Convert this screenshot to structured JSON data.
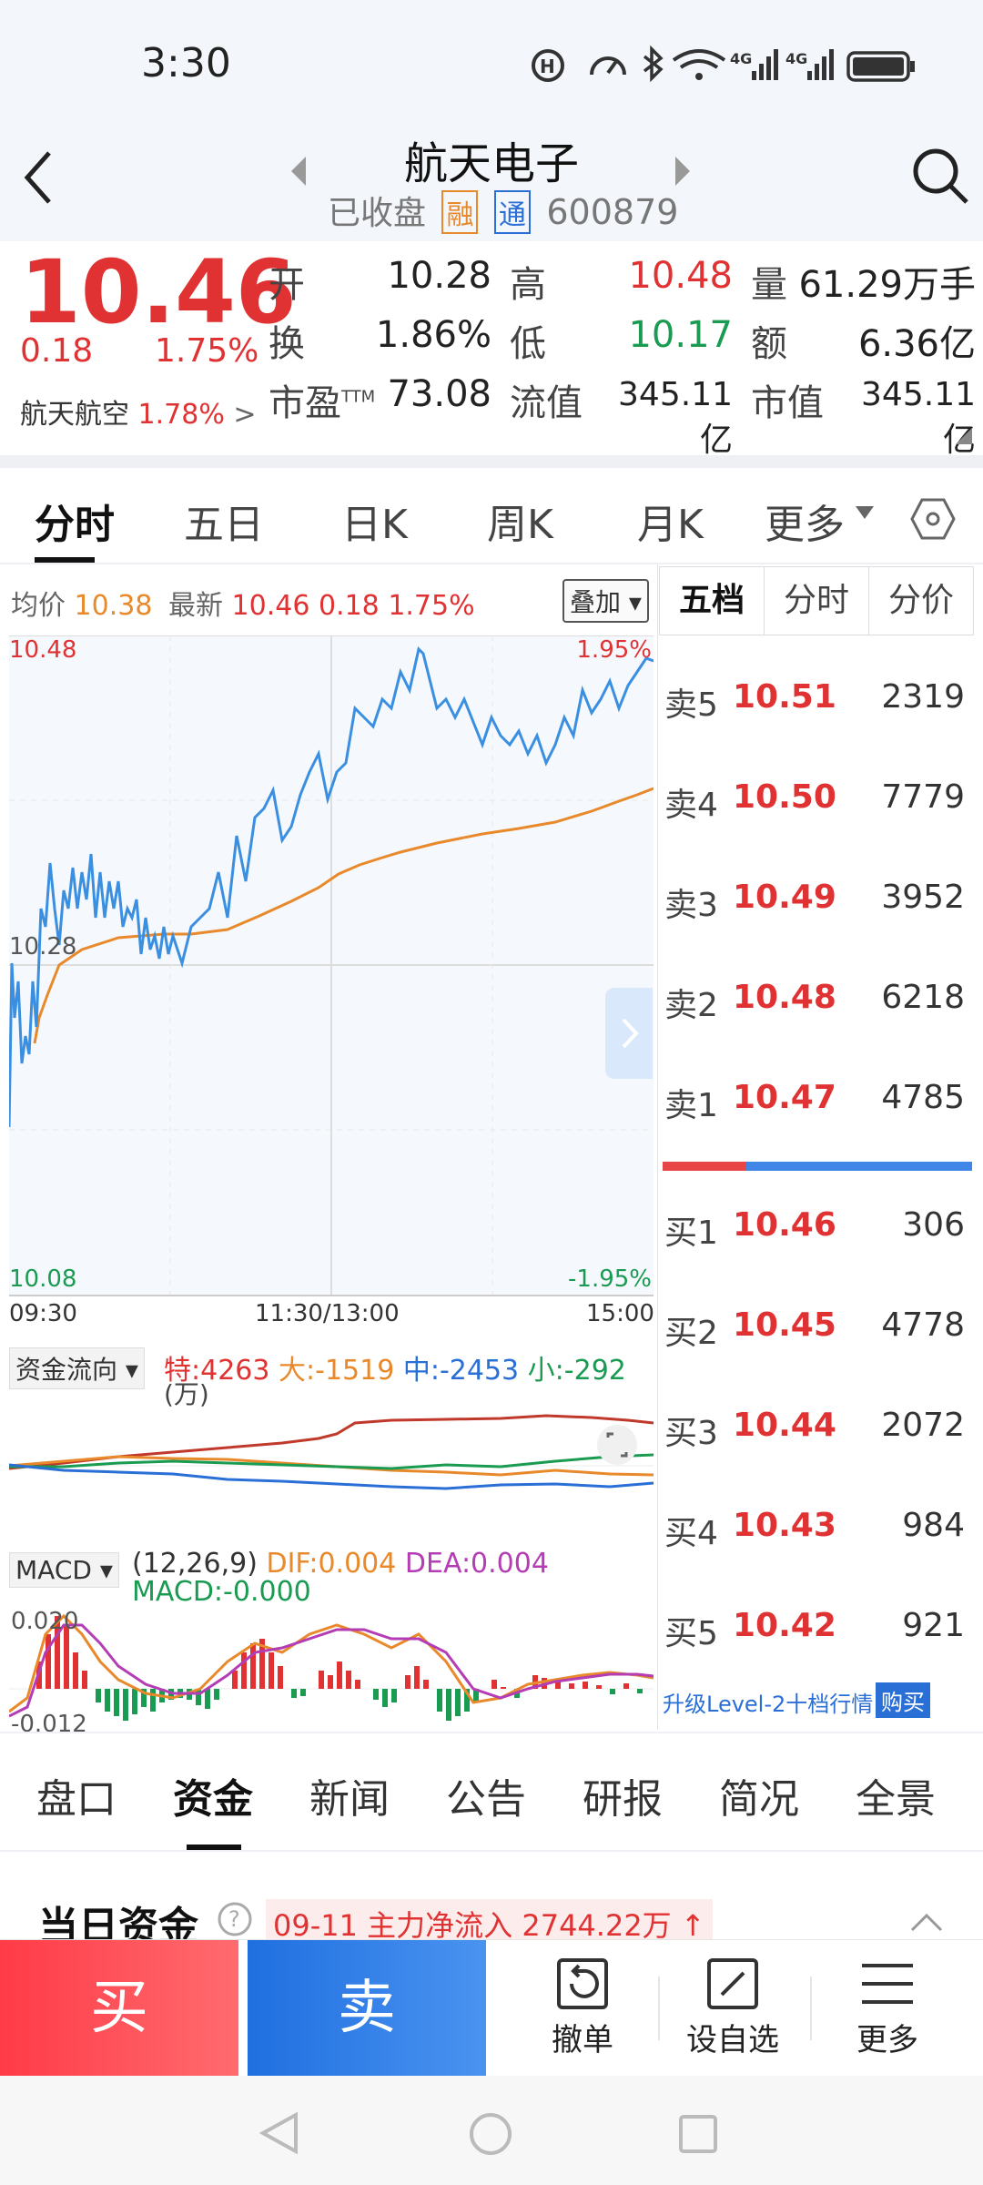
{
  "status_bar": {
    "time": "3:30",
    "icons": [
      "hd-icon",
      "speed-icon",
      "bluetooth-icon",
      "wifi-icon",
      "4g-signal-icon",
      "4g-signal-icon",
      "battery-icon"
    ],
    "net_labels": [
      "4G",
      "4G"
    ]
  },
  "header": {
    "title": "航天电子",
    "market_status": "已收盘",
    "badge_rong": "融",
    "badge_tong": "通",
    "code": "600879"
  },
  "quote": {
    "price": "10.46",
    "change": "0.18",
    "change_pct": "1.75%",
    "related_name": "航天航空",
    "related_pct": "1.78%",
    "rows": [
      [
        {
          "label": "开",
          "value": "10.28"
        },
        {
          "label": "高",
          "value": "10.48"
        },
        {
          "label": "量",
          "value": "61.29万手"
        }
      ],
      [
        {
          "label": "换",
          "value": "1.86%"
        },
        {
          "label": "低",
          "value": "10.17"
        },
        {
          "label": "额",
          "value": "6.36亿"
        }
      ],
      [
        {
          "label": "市盈",
          "value": "73.08"
        },
        {
          "label": "流值",
          "value": "345.11亿"
        },
        {
          "label": "市值",
          "value": "345.11亿"
        }
      ]
    ],
    "pe_sup": "TTM"
  },
  "chart_tabs": [
    "分时",
    "五日",
    "日K",
    "周K",
    "月K",
    "更多"
  ],
  "intraday": {
    "avg_label": "均价",
    "avg_value": "10.38",
    "last_label": "最新",
    "last_value": "10.46",
    "last_change": "0.18",
    "last_pct": "1.75%",
    "overlay_button": "叠加",
    "y_max": "10.48",
    "y_mid": "10.28",
    "y_min": "10.08",
    "pct_max": "1.95%",
    "pct_min": "-1.95%",
    "time_start": "09:30",
    "time_mid": "11:30/13:00",
    "time_end": "15:00"
  },
  "fund_flow": {
    "selector": "资金流向",
    "te": "特:4263",
    "da": "大:-1519",
    "zhong": "中:-2453",
    "xiao": "小:-292",
    "unit": "(万)"
  },
  "macd": {
    "selector": "MACD",
    "params": "(12,26,9)",
    "dif": "DIF:0.004",
    "dea": "DEA:0.004",
    "macd": "MACD:-0.000",
    "y_top": "0.020",
    "y_bot": "-0.012"
  },
  "book_tabs": [
    "五档",
    "分时",
    "分价"
  ],
  "order_book": {
    "asks": [
      {
        "label": "卖5",
        "price": "10.51",
        "vol": "2319"
      },
      {
        "label": "卖4",
        "price": "10.50",
        "vol": "7779"
      },
      {
        "label": "卖3",
        "price": "10.49",
        "vol": "3952"
      },
      {
        "label": "卖2",
        "price": "10.48",
        "vol": "6218"
      },
      {
        "label": "卖1",
        "price": "10.47",
        "vol": "4785"
      }
    ],
    "bids": [
      {
        "label": "买1",
        "price": "10.46",
        "vol": "306"
      },
      {
        "label": "买2",
        "price": "10.45",
        "vol": "4778"
      },
      {
        "label": "买3",
        "price": "10.44",
        "vol": "2072"
      },
      {
        "label": "买4",
        "price": "10.43",
        "vol": "984"
      },
      {
        "label": "买5",
        "price": "10.42",
        "vol": "921"
      }
    ],
    "upgrade_text": "升级Level-2十档行情",
    "buy_badge": "购买"
  },
  "info_tabs": [
    "盘口",
    "资金",
    "新闻",
    "公告",
    "研报",
    "简况",
    "全景"
  ],
  "fund_section": {
    "title": "当日资金",
    "date": "09-11",
    "desc": "主力净流入",
    "amount": "2744.22万"
  },
  "actions": {
    "buy": "买",
    "sell": "卖",
    "cancel": "撤单",
    "watch": "设自选",
    "more": "更多"
  },
  "colors": {
    "up": "#e03232",
    "down": "#1a9b52",
    "price_line": "#3b8fe0",
    "avg_line": "#e8892b",
    "buy_btn": "#ff4a55",
    "sell_btn": "#2f7ae5"
  }
}
